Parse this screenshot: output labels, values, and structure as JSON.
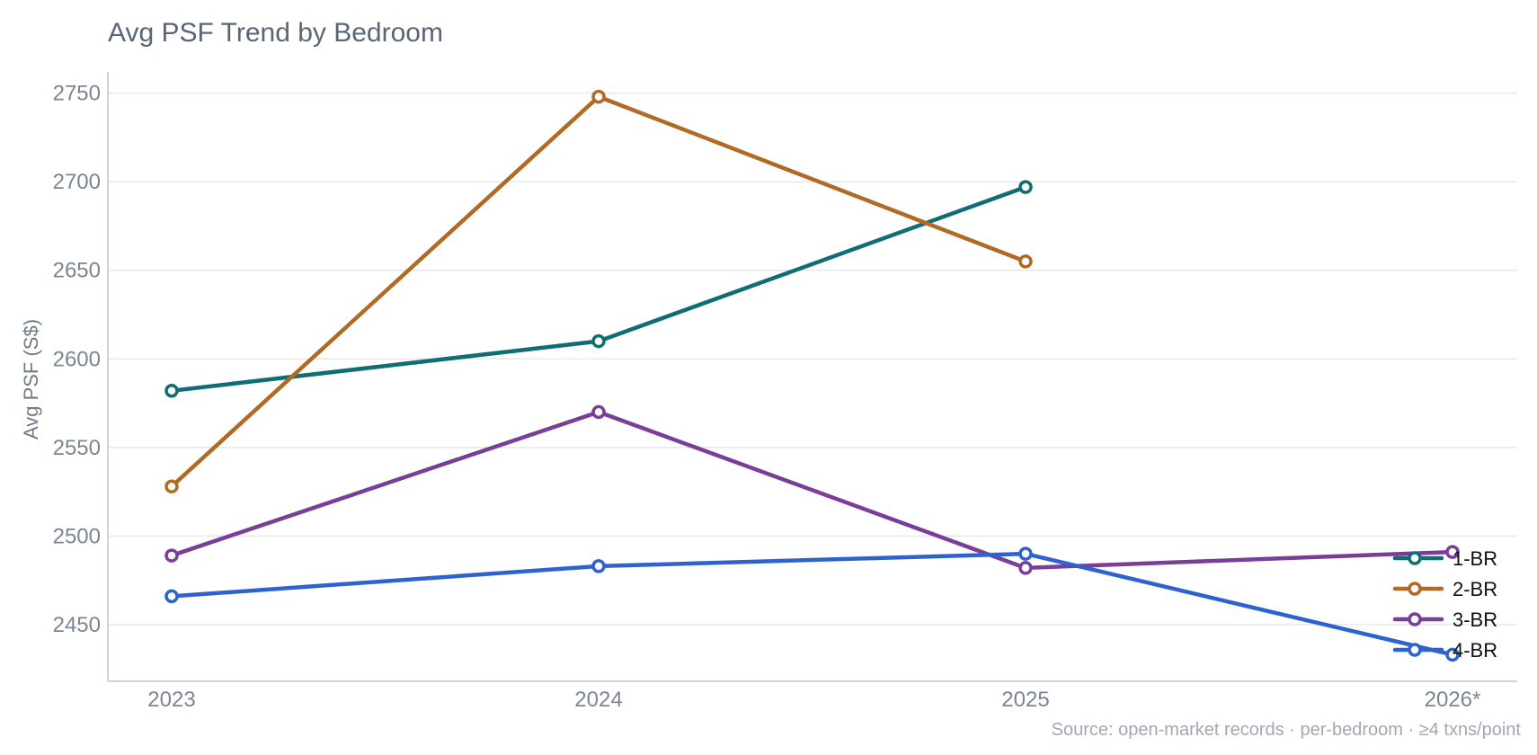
{
  "chart_data": {
    "type": "line",
    "title": "Avg PSF Trend by Bedroom",
    "xlabel": "",
    "ylabel": "Avg PSF (S$)",
    "x": [
      "2023",
      "2024",
      "2025",
      "2026*"
    ],
    "ylim": [
      2418,
      2762
    ],
    "yticks": [
      2450,
      2500,
      2550,
      2600,
      2650,
      2700,
      2750
    ],
    "grid": true,
    "legend_position": "bottom-right",
    "series": [
      {
        "name": "1-BR",
        "color": "#0f6e73",
        "values": [
          2582,
          2610,
          2697,
          null
        ]
      },
      {
        "name": "2-BR",
        "color": "#b06a23",
        "values": [
          2528,
          2748,
          2655,
          null
        ]
      },
      {
        "name": "3-BR",
        "color": "#7a3d98",
        "values": [
          2489,
          2570,
          2482,
          2491
        ]
      },
      {
        "name": "4-BR",
        "color": "#2f62d1",
        "values": [
          2466,
          2483,
          2490,
          2433
        ]
      }
    ],
    "source": "Source: open-market records · per-bedroom · ≥4 txns/point"
  }
}
